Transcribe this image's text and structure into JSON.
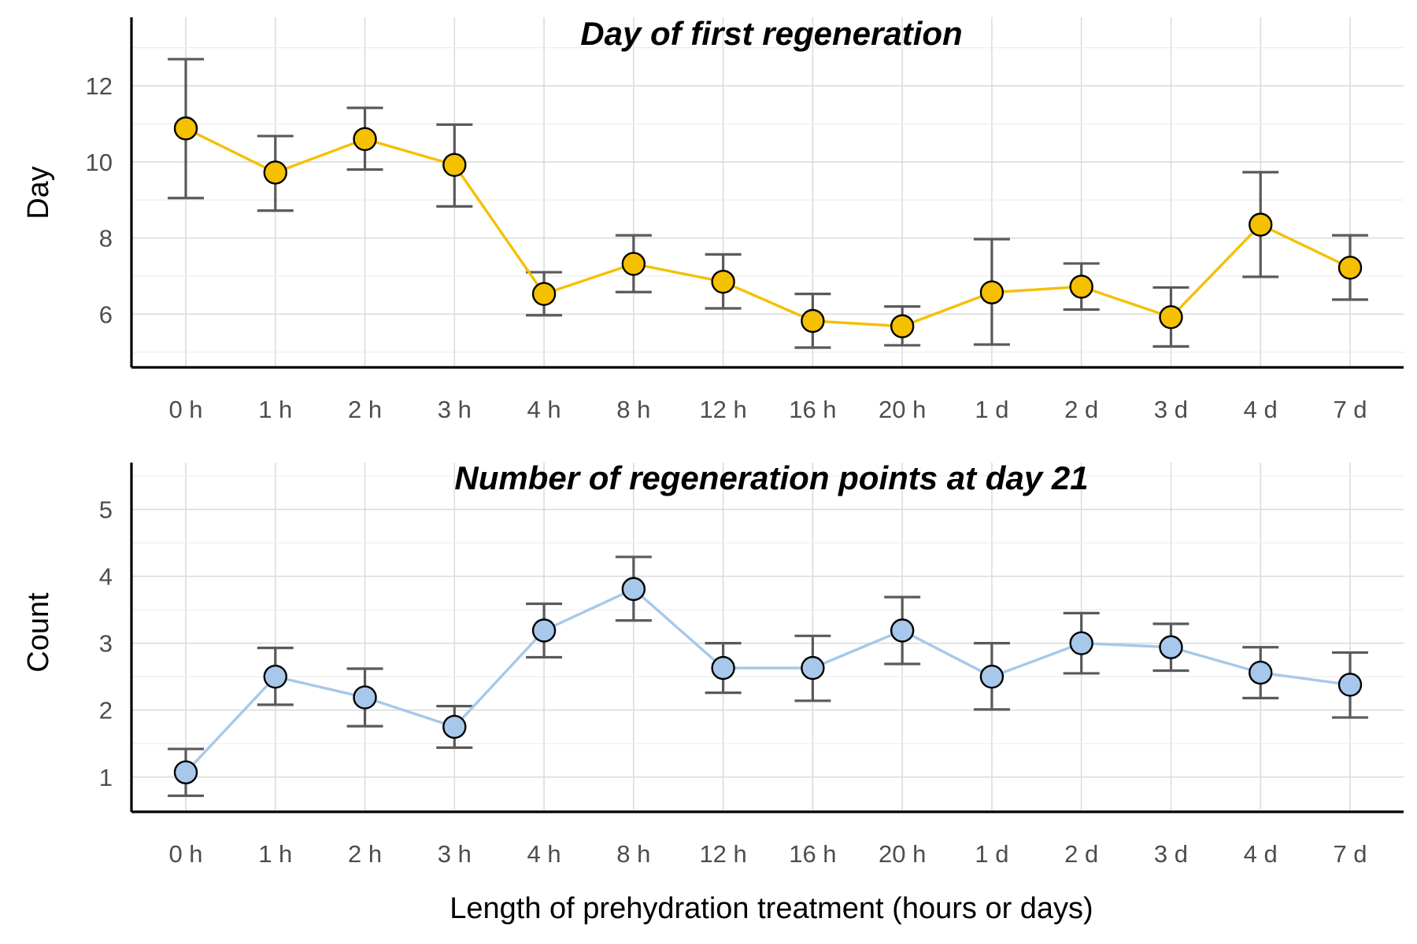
{
  "chart_data": [
    {
      "type": "line",
      "title": "Day of first regeneration",
      "ylabel": "Day",
      "xlabel": "",
      "categories": [
        "0 h",
        "1 h",
        "2 h",
        "3 h",
        "4 h",
        "8 h",
        "12 h",
        "16 h",
        "20 h",
        "1 d",
        "2 d",
        "3 d",
        "4 d",
        "7 d"
      ],
      "series": [
        {
          "values": [
            10.88,
            9.72,
            10.6,
            9.92,
            6.53,
            7.32,
            6.85,
            5.82,
            5.68,
            6.57,
            6.72,
            5.92,
            8.35,
            7.22
          ],
          "lower": [
            9.05,
            8.72,
            9.8,
            8.83,
            5.97,
            6.58,
            6.15,
            5.12,
            5.18,
            5.2,
            6.12,
            5.15,
            6.98,
            6.38
          ],
          "upper": [
            12.7,
            10.68,
            11.42,
            10.98,
            7.1,
            8.07,
            7.57,
            6.53,
            6.2,
            7.97,
            7.33,
            6.7,
            9.73,
            8.07
          ]
        }
      ],
      "ylim": [
        4.6,
        13.8
      ],
      "yticks": [
        6,
        8,
        10,
        12
      ],
      "grid": true,
      "colors": {
        "line": "#f5c000",
        "point": "#f5c000"
      }
    },
    {
      "type": "line",
      "title": "Number of regeneration points at day 21",
      "ylabel": "Count",
      "xlabel": "Length of prehydration treatment (hours or days)",
      "categories": [
        "0 h",
        "1 h",
        "2 h",
        "3 h",
        "4 h",
        "8 h",
        "12 h",
        "16 h",
        "20 h",
        "1 d",
        "2 d",
        "3 d",
        "4 d",
        "7 d"
      ],
      "series": [
        {
          "values": [
            1.07,
            2.5,
            2.19,
            1.75,
            3.19,
            3.81,
            2.63,
            2.63,
            3.19,
            2.5,
            3.0,
            2.94,
            2.56,
            2.38
          ],
          "lower": [
            0.72,
            2.08,
            1.76,
            1.44,
            2.79,
            3.34,
            2.26,
            2.14,
            2.69,
            2.01,
            2.55,
            2.59,
            2.18,
            1.89
          ],
          "upper": [
            1.42,
            2.93,
            2.62,
            2.06,
            3.59,
            4.29,
            3.0,
            3.11,
            3.69,
            3.0,
            3.45,
            3.29,
            2.94,
            2.86
          ]
        }
      ],
      "ylim": [
        0.48,
        5.7
      ],
      "yticks": [
        1,
        2,
        3,
        4,
        5
      ],
      "grid": true,
      "colors": {
        "line": "#a7c8ea",
        "point": "#a7c8ea"
      }
    }
  ]
}
